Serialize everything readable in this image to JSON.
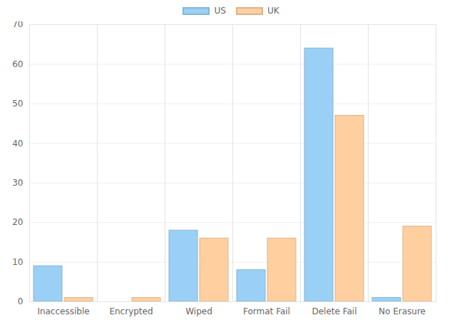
{
  "chart_data": {
    "type": "bar",
    "categories": [
      "Inaccessible",
      "Encrypted",
      "Wiped",
      "Format Fail",
      "Delete Fail",
      "No Erasure"
    ],
    "series": [
      {
        "name": "US",
        "color": "#9ad0f5",
        "values": [
          9,
          0,
          18,
          8,
          64,
          1
        ]
      },
      {
        "name": "UK",
        "color": "#ffcf9f",
        "values": [
          1,
          1,
          16,
          16,
          47,
          19
        ]
      }
    ],
    "ylim": [
      0,
      70
    ],
    "yticks": [
      0,
      10,
      20,
      30,
      40,
      50,
      60,
      70
    ],
    "grid": true,
    "legend": "top"
  }
}
